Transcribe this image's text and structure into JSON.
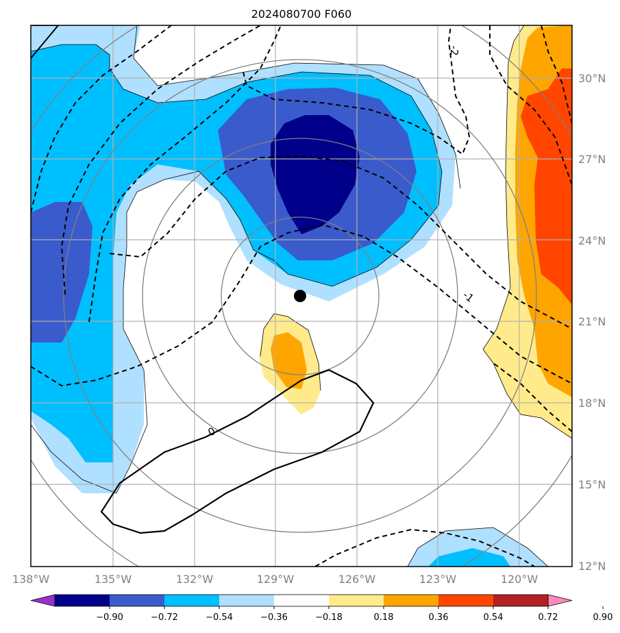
{
  "title": "2024080700 F060",
  "lat_labels": [
    "30°N",
    "27°N",
    "24°N",
    "21°N",
    "18°N",
    "15°N",
    "12°N"
  ],
  "lon_labels": [
    "138°W",
    "135°W",
    "132°W",
    "129°W",
    "126°W",
    "123°W",
    "120°W"
  ],
  "contour_labels": [
    "-2",
    "-1",
    "0"
  ],
  "colorbar": {
    "ticks": [
      "−0.90",
      "−0.72",
      "−0.54",
      "−0.36",
      "−0.18",
      "0.18",
      "0.36",
      "0.54",
      "0.72",
      "0.90"
    ],
    "colors": [
      "#9932CC",
      "#00008B",
      "#3A5BCB",
      "#00BFFF",
      "#B0E0FF",
      "#FFFFFF",
      "#FFEB8C",
      "#FFA500",
      "#FF4500",
      "#B22222",
      "#FF88B8"
    ]
  },
  "center_marker": "storm-center-dot",
  "colors": {
    "grid": "#a0a0a0",
    "range_rings": "#808080",
    "axis_text": "#808080"
  }
}
